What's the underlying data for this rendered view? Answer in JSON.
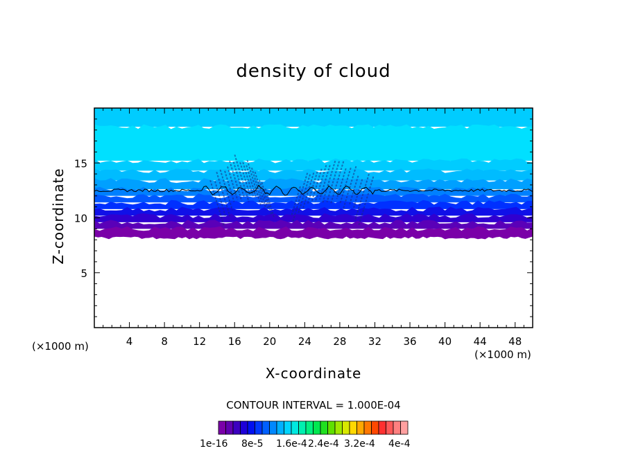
{
  "chart_data": {
    "type": "heatmap",
    "title": "density of cloud",
    "xlabel": "X-coordinate",
    "ylabel": "Z-coordinate",
    "x_unit_left": "(×1000 m)",
    "x_unit_right": "(×1000 m)",
    "xlim": [
      0,
      50
    ],
    "ylim": [
      0,
      20
    ],
    "x_ticks": [
      "4",
      "8",
      "12",
      "16",
      "20",
      "24",
      "28",
      "32",
      "36",
      "40",
      "44",
      "48"
    ],
    "y_ticks": [
      "5",
      "10",
      "15"
    ],
    "x_tick_values": [
      4,
      8,
      12,
      16,
      20,
      24,
      28,
      32,
      36,
      40,
      44,
      48
    ],
    "y_tick_values": [
      5,
      10,
      15
    ],
    "contour_interval": "CONTOUR INTERVAL = 1.000E-04",
    "colorbar_labels": [
      "1e-16",
      "8e-5",
      "1.6e-4",
      "2.4e-4",
      "3.2e-4",
      "4e-4"
    ],
    "colorbar_colors": [
      "#7a00a8",
      "#6000b0",
      "#3c00c0",
      "#1e00d8",
      "#0010f0",
      "#0038ff",
      "#0060ff",
      "#0088ff",
      "#00b0ff",
      "#00d4ff",
      "#00e8e0",
      "#00f0b0",
      "#00f080",
      "#00e850",
      "#20e020",
      "#60e000",
      "#a0e800",
      "#d8e800",
      "#ffd800",
      "#ffa800",
      "#ff7800",
      "#ff4800",
      "#ff3030",
      "#ff5858",
      "#ff8080",
      "#ffa0a0"
    ],
    "bands_z": [
      {
        "z_top": 9.0,
        "color": "#7a00a8"
      },
      {
        "z_top": 9.6,
        "color": "#5a00b8"
      },
      {
        "z_top": 10.2,
        "color": "#3000d0"
      },
      {
        "z_top": 10.8,
        "color": "#1010e8"
      },
      {
        "z_top": 11.4,
        "color": "#0030ff"
      },
      {
        "z_top": 12.0,
        "color": "#0058ff"
      },
      {
        "z_top": 12.6,
        "color": "#0080ff"
      },
      {
        "z_top": 13.4,
        "color": "#00a0ff"
      },
      {
        "z_top": 14.3,
        "color": "#00bcff"
      },
      {
        "z_top": 15.2,
        "color": "#00ccff"
      },
      {
        "z_top": 18.3,
        "color": "#00e0ff"
      },
      {
        "z_top": 20.0,
        "color": "#00ccff"
      }
    ],
    "cloud_base_z": 8.3,
    "contour_line_z": 12.5
  }
}
